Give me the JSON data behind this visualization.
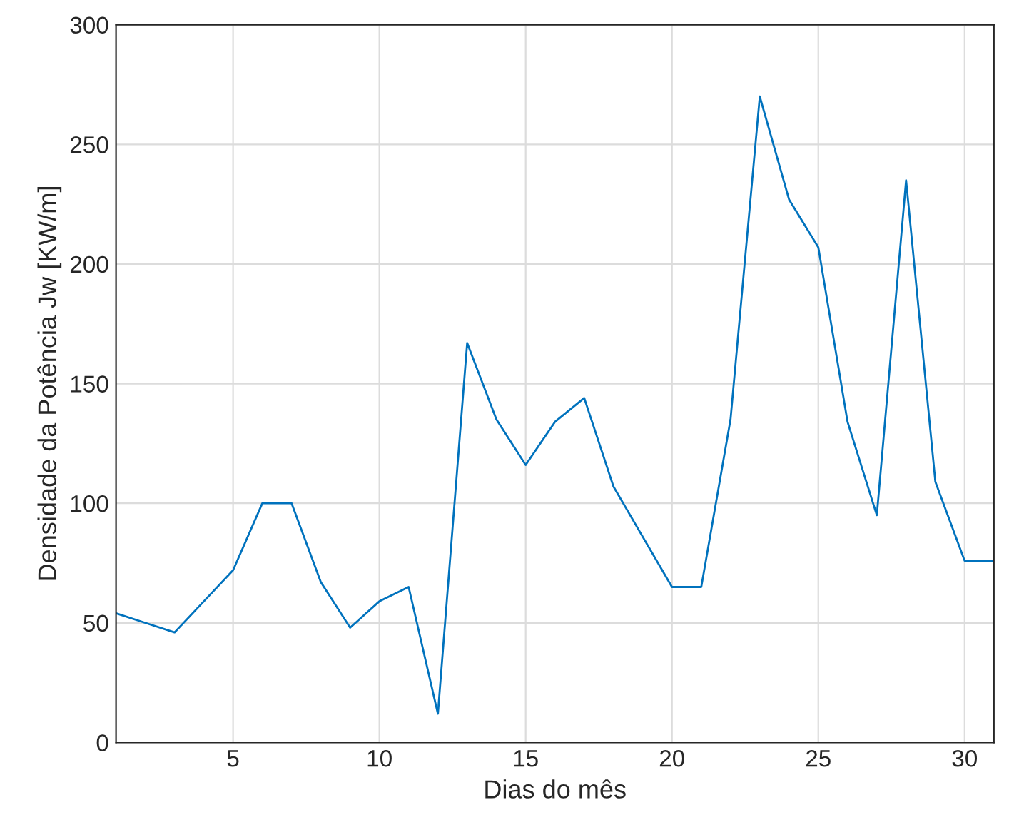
{
  "chart_data": {
    "type": "line",
    "xlabel": "Dias do mês",
    "ylabel": "Densidade da Potência Jw [KW/m]",
    "x": [
      1,
      2,
      3,
      4,
      5,
      6,
      7,
      8,
      9,
      10,
      11,
      12,
      13,
      14,
      15,
      16,
      17,
      18,
      19,
      20,
      21,
      22,
      23,
      24,
      25,
      26,
      27,
      28,
      29,
      30,
      31
    ],
    "series": [
      {
        "color": "#0072bd",
        "values": [
          54,
          50,
          46,
          59,
          72,
          100,
          100,
          67,
          48,
          59,
          65,
          12,
          167,
          135,
          116,
          134,
          144,
          107,
          86,
          65,
          65,
          135,
          270,
          227,
          207,
          134,
          95,
          235,
          109,
          76,
          76
        ]
      }
    ],
    "xlim": [
      1,
      31
    ],
    "xticks": [
      5,
      10,
      15,
      20,
      25,
      30
    ],
    "ylim": [
      0,
      300
    ],
    "yticks": [
      0,
      50,
      100,
      150,
      200,
      250,
      300
    ],
    "grid": true,
    "marker": "none",
    "line_style": "solid"
  }
}
